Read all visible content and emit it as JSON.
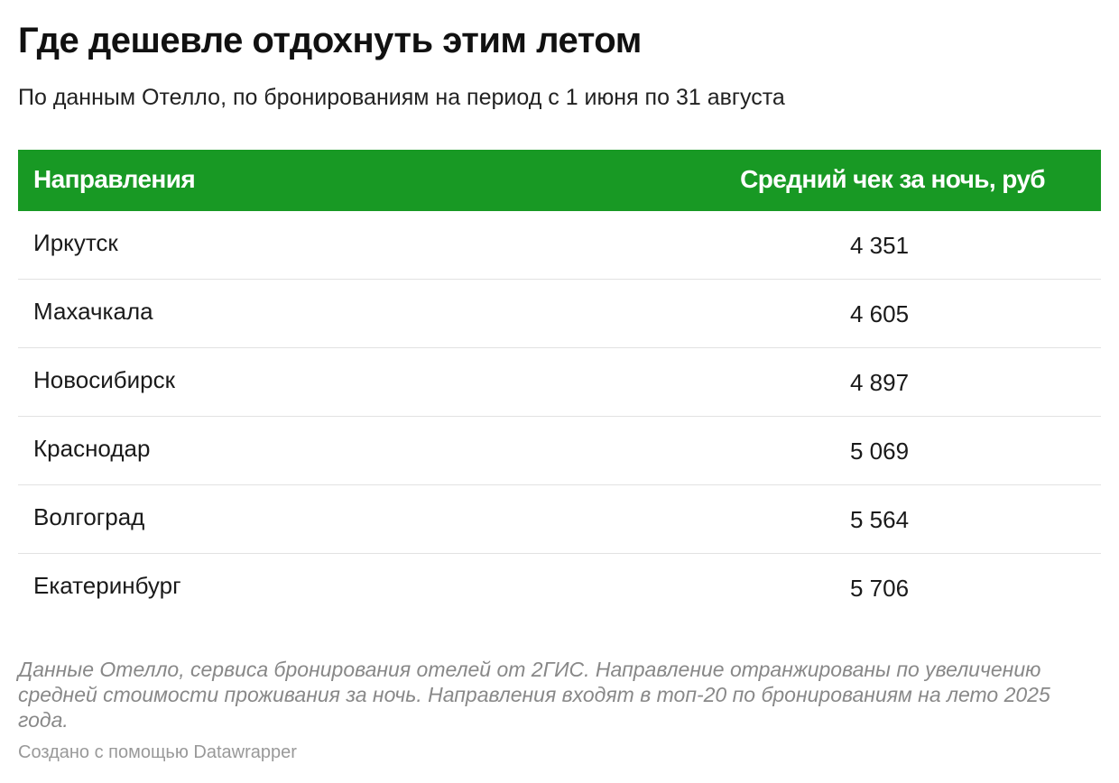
{
  "chart_data": {
    "type": "table",
    "title": "Где дешевле отдохнуть этим летом",
    "subtitle": "По данным Отелло, по бронированиям на период с 1 июня по 31 августа",
    "columns": [
      "Направления",
      "Средний чек за ночь, руб"
    ],
    "rows": [
      {
        "name": "Иркутск",
        "value": "4 351"
      },
      {
        "name": "Махачкала",
        "value": "4 605"
      },
      {
        "name": "Новосибирск",
        "value": "4 897"
      },
      {
        "name": "Краснодар",
        "value": "5 069"
      },
      {
        "name": "Волгоград",
        "value": "5 564"
      },
      {
        "name": "Екатеринбург",
        "value": "5 706"
      }
    ],
    "values": [
      4351,
      4605,
      4897,
      5069,
      5564,
      5706
    ],
    "notes": "Данные Отелло, сервиса бронирования отелей от 2ГИС. Направление отранжированы по увеличению средней стоимости проживания за ночь. Направления входят в топ-20 по бронированиям на лето 2025 года.",
    "credit": "Создано с помощью Datawrapper",
    "header_color": "#189924"
  }
}
